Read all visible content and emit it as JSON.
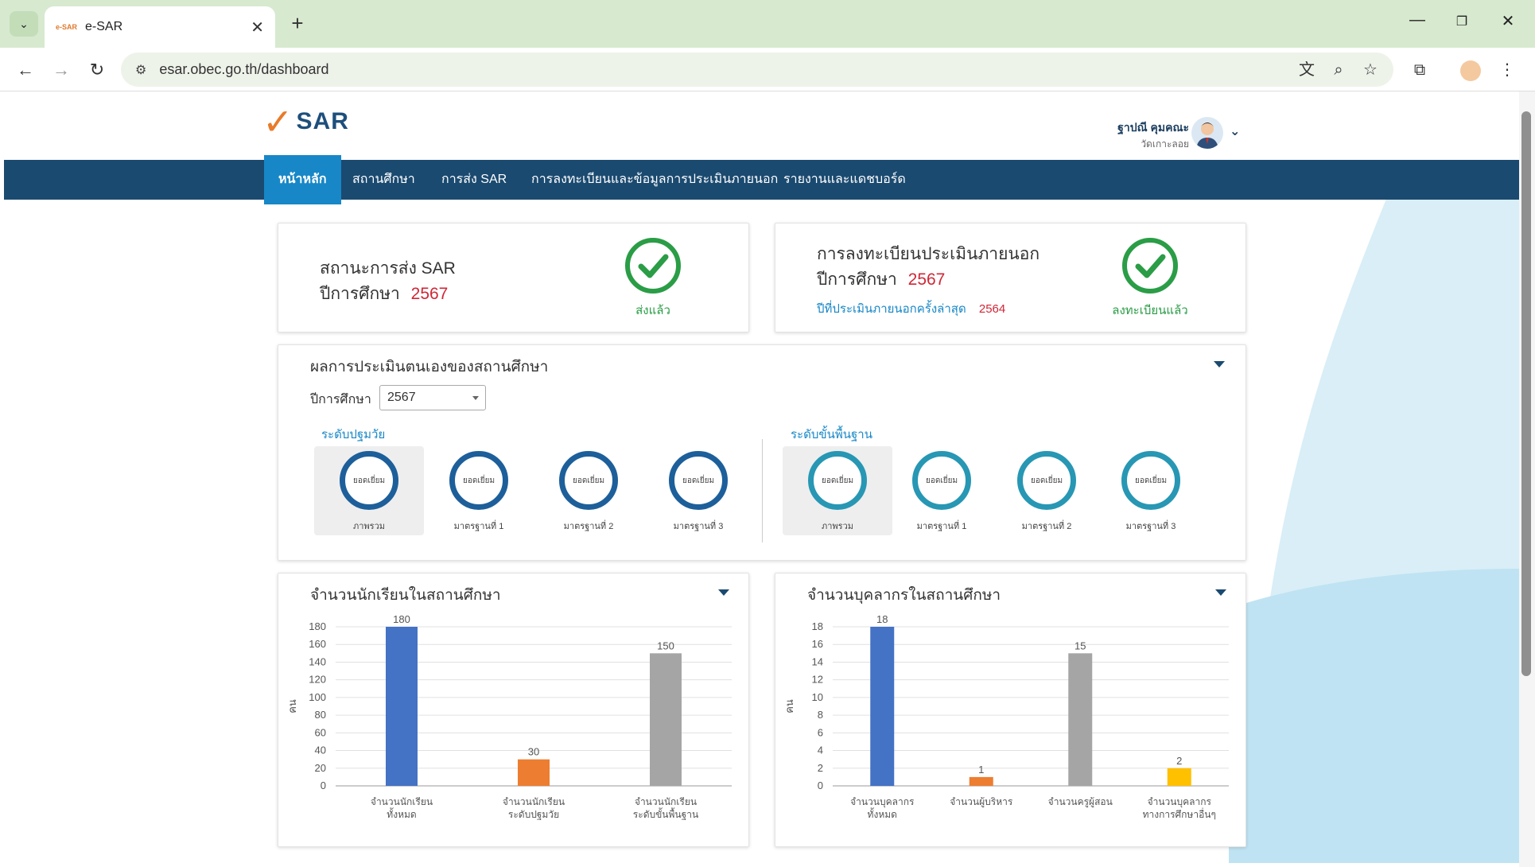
{
  "browser": {
    "tab_title": "e-SAR",
    "tab_favicon_text": "e-SAR",
    "url": "esar.obec.go.th/dashboard"
  },
  "header": {
    "logo_text": "SAR",
    "user_name": "ฐาปณี คุมคณะ",
    "user_school": "วัดเกาะลอย"
  },
  "nav": {
    "items": [
      "หน้าหลัก",
      "สถานศึกษา",
      "การส่ง SAR",
      "การลงทะเบียนและข้อมูลการประเมินภายนอก",
      "รายงานและแดชบอร์ด"
    ]
  },
  "sar_status": {
    "title": "สถานะการส่ง SAR",
    "year_label": "ปีการศึกษา",
    "year": "2567",
    "status": "ส่งแล้ว"
  },
  "external_eval": {
    "title": "การลงทะเบียนประเมินภายนอก",
    "year_label": "ปีการศึกษา",
    "year": "2567",
    "last_eval_label": "ปีที่ประเมินภายนอกครั้งล่าสุด",
    "last_eval_year": "2564",
    "status": "ลงทะเบียนแล้ว"
  },
  "self_assessment": {
    "title": "ผลการประเมินตนเองของสถานศึกษา",
    "year_label": "ปีการศึกษา",
    "year_selected": "2567",
    "early": {
      "label": "ระดับปฐมวัย",
      "items": [
        {
          "grade": "ยอดเยี่ยม",
          "name": "ภาพรวม"
        },
        {
          "grade": "ยอดเยี่ยม",
          "name": "มาตรฐานที่ 1"
        },
        {
          "grade": "ยอดเยี่ยม",
          "name": "มาตรฐานที่ 2"
        },
        {
          "grade": "ยอดเยี่ยม",
          "name": "มาตรฐานที่ 3"
        }
      ]
    },
    "basic": {
      "label": "ระดับขั้นพื้นฐาน",
      "items": [
        {
          "grade": "ยอดเยี่ยม",
          "name": "ภาพรวม"
        },
        {
          "grade": "ยอดเยี่ยม",
          "name": "มาตรฐานที่ 1"
        },
        {
          "grade": "ยอดเยี่ยม",
          "name": "มาตรฐานที่ 2"
        },
        {
          "grade": "ยอดเยี่ยม",
          "name": "มาตรฐานที่ 3"
        }
      ]
    }
  },
  "students_card": {
    "title": "จำนวนนักเรียนในสถานศึกษา"
  },
  "staff_card": {
    "title": "จำนวนบุคลากรในสถานศึกษา"
  },
  "colors": {
    "nav": "#1b4a70",
    "nav_active": "#1787c7",
    "success": "#2a9d46",
    "highlight": "#d02636",
    "bar_blue": "#4472c4",
    "bar_orange": "#ed7d31",
    "bar_gray": "#a5a5a5",
    "bar_yellow": "#ffc000"
  },
  "chart_data": [
    {
      "type": "bar",
      "ylabel": "คน",
      "ylim": [
        0,
        180
      ],
      "yticks": [
        0,
        20,
        40,
        60,
        80,
        100,
        120,
        140,
        160,
        180
      ],
      "categories": [
        [
          "จำนวนนักเรียน",
          "ทั้งหมด"
        ],
        [
          "จำนวนนักเรียน",
          "ระดับปฐมวัย"
        ],
        [
          "จำนวนนักเรียน",
          "ระดับขั้นพื้นฐาน"
        ]
      ],
      "values": [
        180,
        30,
        150
      ],
      "bar_colors": [
        "#4472c4",
        "#ed7d31",
        "#a5a5a5"
      ],
      "grid": true
    },
    {
      "type": "bar",
      "ylabel": "คน",
      "ylim": [
        0,
        18
      ],
      "yticks": [
        0,
        2,
        4,
        6,
        8,
        10,
        12,
        14,
        16,
        18
      ],
      "categories": [
        [
          "จำนวนบุคลากร",
          "ทั้งหมด"
        ],
        [
          "จำนวนผู้บริหาร"
        ],
        [
          "จำนวนครูผู้สอน"
        ],
        [
          "จำนวนบุคลากร",
          "ทางการศึกษาอื่นๆ"
        ]
      ],
      "values": [
        18,
        1,
        15,
        2
      ],
      "bar_colors": [
        "#4472c4",
        "#ed7d31",
        "#a5a5a5",
        "#ffc000"
      ],
      "grid": true
    }
  ]
}
